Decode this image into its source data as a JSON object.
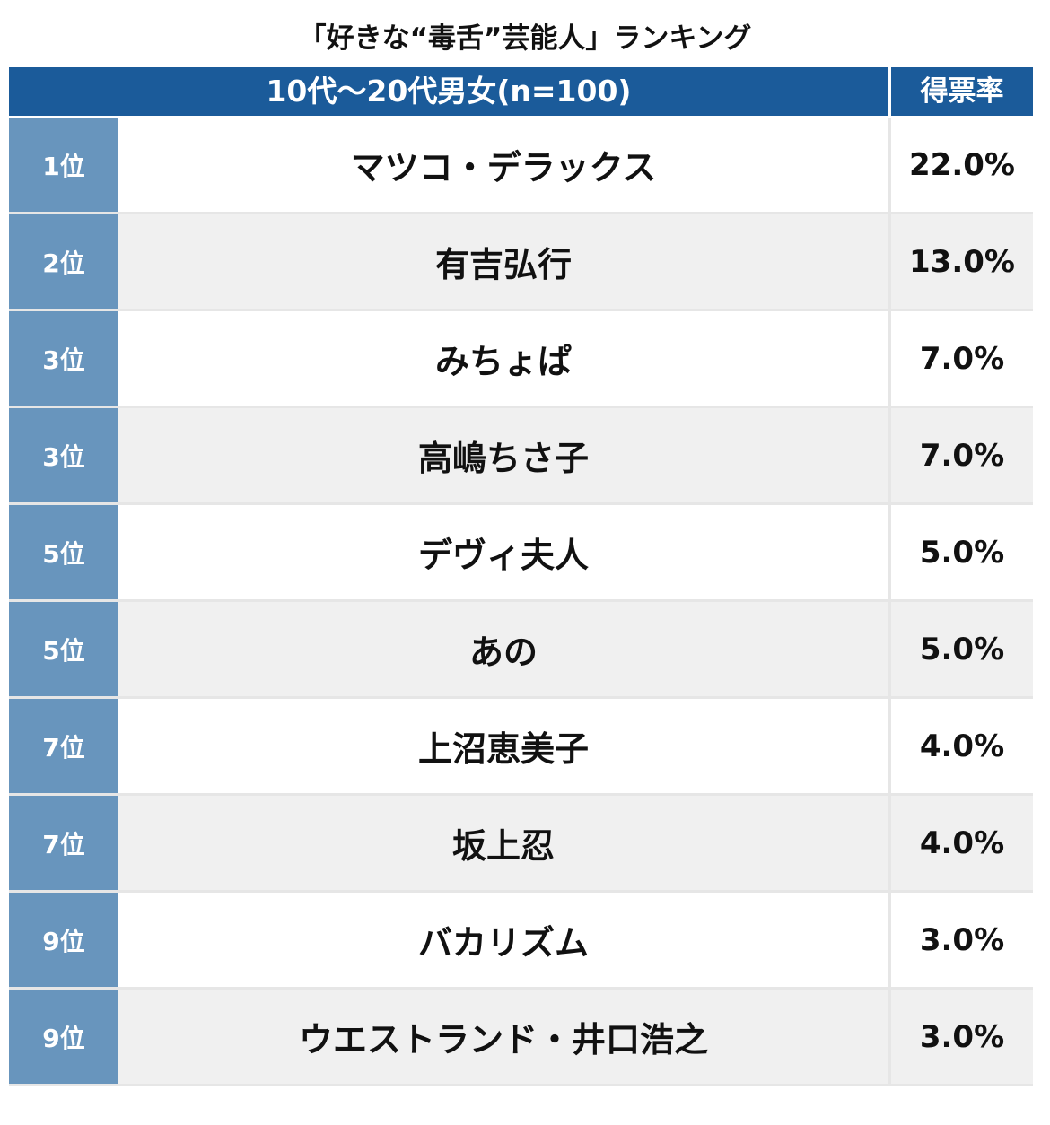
{
  "chart_data": {
    "type": "table",
    "title": "「好きな“毒舌”芸能人」ランキング",
    "header": {
      "group": "10代〜20代男女(n=100)",
      "rate": "得票率"
    },
    "rows": [
      {
        "rank": "1位",
        "name": "マツコ・デラックス",
        "rate": "22.0%",
        "value": 22.0
      },
      {
        "rank": "2位",
        "name": "有吉弘行",
        "rate": "13.0%",
        "value": 13.0
      },
      {
        "rank": "3位",
        "name": "みちょぱ",
        "rate": "7.0%",
        "value": 7.0
      },
      {
        "rank": "3位",
        "name": "高嶋ちさ子",
        "rate": "7.0%",
        "value": 7.0
      },
      {
        "rank": "5位",
        "name": "デヴィ夫人",
        "rate": "5.0%",
        "value": 5.0
      },
      {
        "rank": "5位",
        "name": "あの",
        "rate": "5.0%",
        "value": 5.0
      },
      {
        "rank": "7位",
        "name": "上沼恵美子",
        "rate": "4.0%",
        "value": 4.0
      },
      {
        "rank": "7位",
        "name": "坂上忍",
        "rate": "4.0%",
        "value": 4.0
      },
      {
        "rank": "9位",
        "name": "バカリズム",
        "rate": "3.0%",
        "value": 3.0
      },
      {
        "rank": "9位",
        "name": "ウエストランド・井口浩之",
        "rate": "3.0%",
        "value": 3.0
      }
    ]
  },
  "colors": {
    "header_bg": "#1b5b9a",
    "rank_bg": "#6895bd",
    "row_alt_bg": "#f0f0f0",
    "row_bg": "#ffffff",
    "text": "#111111",
    "header_text": "#ffffff"
  }
}
